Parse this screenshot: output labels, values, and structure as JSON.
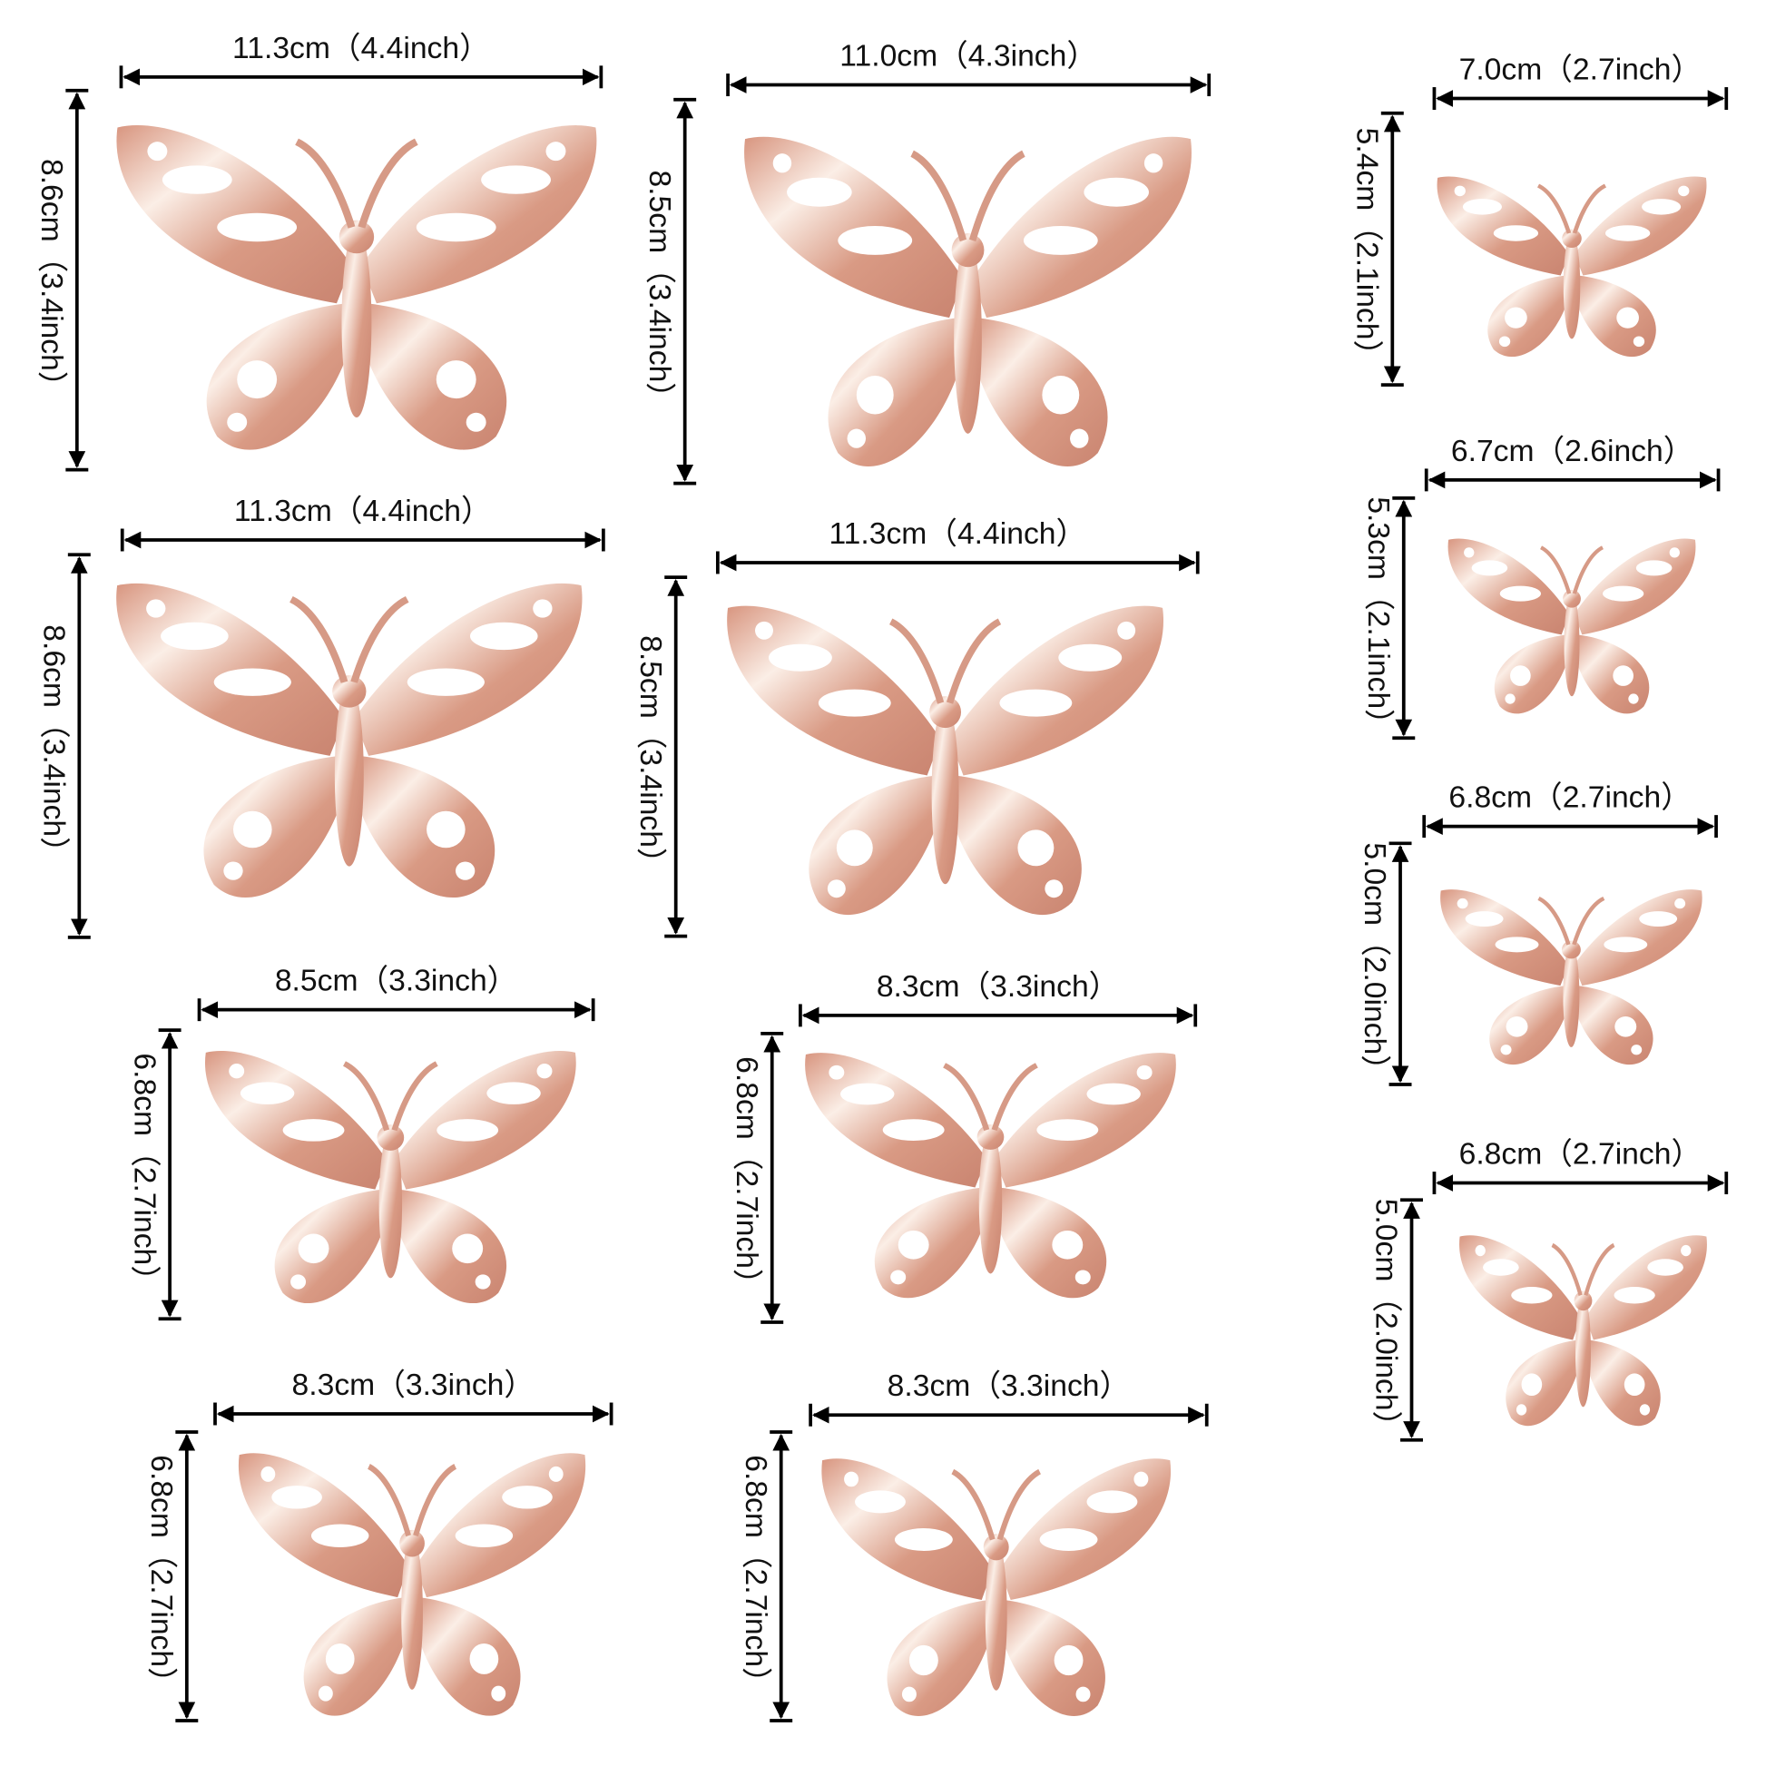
{
  "items": [
    {
      "width": "11.3cm（4.4inch）",
      "height": "8.6cm（3.4inch）"
    },
    {
      "width": "11.0cm（4.3inch）",
      "height": "8.5cm（3.4inch）"
    },
    {
      "width": "7.0cm（2.7inch）",
      "height": "5.4cm（2.1inch）"
    },
    {
      "width": "11.3cm（4.4inch）",
      "height": "8.6cm（3.4inch）"
    },
    {
      "width": "11.3cm（4.4inch）",
      "height": "8.5cm（3.4inch）"
    },
    {
      "width": "6.7cm（2.6inch）",
      "height": "5.3cm（2.1inch）"
    },
    {
      "width": "6.8cm（2.7inch）",
      "height": "5.0cm（2.0inch）"
    },
    {
      "width": "8.5cm（3.3inch）",
      "height": "6.8cm（2.7inch）"
    },
    {
      "width": "8.3cm（3.3inch）",
      "height": "6.8cm（2.7inch）"
    },
    {
      "width": "6.8cm（2.7inch）",
      "height": "5.0cm（2.0inch）"
    },
    {
      "width": "8.3cm（3.3inch）",
      "height": "6.8cm（2.7inch）"
    },
    {
      "width": "8.3cm（3.3inch）",
      "height": "6.8cm（2.7inch）"
    }
  ]
}
